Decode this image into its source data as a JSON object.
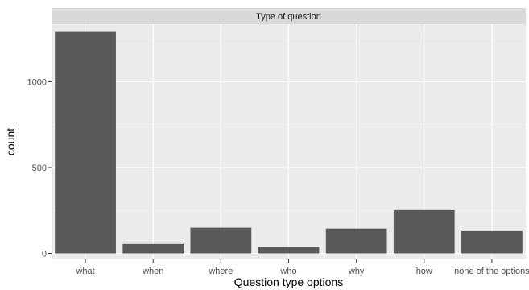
{
  "chart_data": {
    "type": "bar",
    "facet_label": "Type of question",
    "categories": [
      "what",
      "when",
      "where",
      "who",
      "why",
      "how",
      "none of the options"
    ],
    "values": [
      1290,
      55,
      150,
      38,
      145,
      252,
      130
    ],
    "xlabel": "Question type options",
    "ylabel": "count",
    "ylim": [
      -35,
      1335
    ],
    "yticks": [
      0,
      500,
      1000
    ],
    "grid": true,
    "colors": {
      "bar": "#595959",
      "panel": "#ebebeb",
      "grid_major": "#ffffff",
      "grid_minor": "#f5f5f5",
      "strip": "#d9d9d9"
    }
  }
}
